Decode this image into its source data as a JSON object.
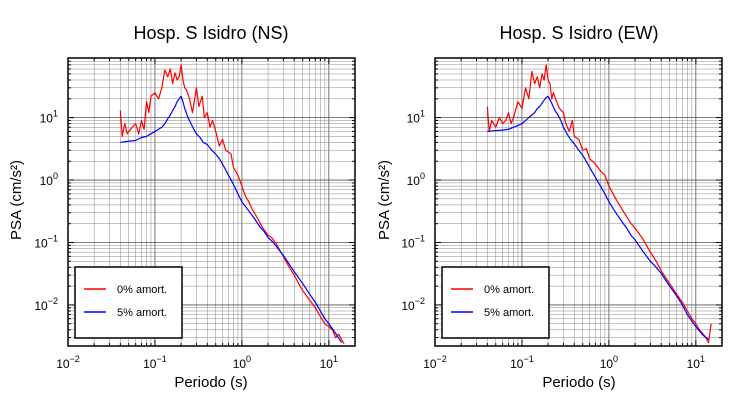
{
  "chart_data": [
    {
      "type": "line",
      "title": "Hosp. S Isidro (NS)",
      "xlabel": "Periodo (s)",
      "ylabel": "PSA (cm/s²)",
      "x_scale": "log",
      "y_scale": "log",
      "xlim": [
        0.01,
        20
      ],
      "ylim": [
        0.0022,
        90
      ],
      "x_ticks": [
        {
          "value": 0.01,
          "base": "10",
          "exp": "−2"
        },
        {
          "value": 0.1,
          "base": "10",
          "exp": "−1"
        },
        {
          "value": 1,
          "base": "10",
          "exp": "0"
        },
        {
          "value": 10,
          "base": "10",
          "exp": "1"
        }
      ],
      "y_ticks": [
        {
          "value": 0.01,
          "base": "10",
          "exp": "−2"
        },
        {
          "value": 0.1,
          "base": "10",
          "exp": "−1"
        },
        {
          "value": 1,
          "base": "10",
          "exp": "0"
        },
        {
          "value": 10,
          "base": "10",
          "exp": "1"
        }
      ],
      "grid": true,
      "legend_position": "bottom-left",
      "series": [
        {
          "name": "0% amort.",
          "color": "#ff0000",
          "x": [
            0.04,
            0.042,
            0.045,
            0.048,
            0.05,
            0.055,
            0.06,
            0.065,
            0.07,
            0.075,
            0.08,
            0.085,
            0.09,
            0.1,
            0.11,
            0.12,
            0.13,
            0.14,
            0.15,
            0.16,
            0.17,
            0.18,
            0.19,
            0.2,
            0.21,
            0.22,
            0.23,
            0.25,
            0.27,
            0.3,
            0.32,
            0.35,
            0.37,
            0.4,
            0.43,
            0.46,
            0.5,
            0.55,
            0.6,
            0.65,
            0.7,
            0.75,
            0.8,
            0.9,
            1.0,
            1.1,
            1.2,
            1.3,
            1.5,
            1.7,
            2.0,
            2.2,
            2.5,
            2.8,
            3.0,
            3.5,
            4.0,
            4.5,
            5.0,
            6.0,
            7.0,
            8.0,
            9.0,
            10,
            11,
            12,
            13,
            14,
            15
          ],
          "y": [
            13,
            5,
            8,
            5.5,
            6,
            7,
            8,
            5.5,
            9,
            6.5,
            18,
            12,
            22,
            25,
            20,
            30,
            58,
            45,
            60,
            35,
            52,
            40,
            45,
            70,
            40,
            30,
            28,
            20,
            12,
            30,
            15,
            22,
            10,
            12,
            7,
            9,
            6,
            3.5,
            4.5,
            3,
            2.8,
            2.6,
            1.6,
            1.2,
            0.8,
            0.55,
            0.45,
            0.35,
            0.25,
            0.18,
            0.13,
            0.12,
            0.095,
            0.07,
            0.06,
            0.04,
            0.03,
            0.022,
            0.017,
            0.012,
            0.009,
            0.0065,
            0.005,
            0.0045,
            0.004,
            0.003,
            0.0034,
            0.0028,
            0.0024
          ]
        },
        {
          "name": "5% amort.",
          "color": "#0000ff",
          "x": [
            0.04,
            0.05,
            0.06,
            0.07,
            0.08,
            0.09,
            0.1,
            0.11,
            0.12,
            0.13,
            0.14,
            0.15,
            0.16,
            0.17,
            0.18,
            0.19,
            0.2,
            0.21,
            0.22,
            0.24,
            0.26,
            0.28,
            0.3,
            0.33,
            0.36,
            0.4,
            0.45,
            0.5,
            0.55,
            0.6,
            0.7,
            0.8,
            0.9,
            1.0,
            1.2,
            1.4,
            1.6,
            1.8,
            2.0,
            2.3,
            2.6,
            3.0,
            3.5,
            4.0,
            5.0,
            6.0,
            7.0,
            8.0,
            9.0,
            10,
            12,
            14
          ],
          "y": [
            4,
            4.2,
            4.3,
            4.8,
            5,
            5.5,
            6,
            6.5,
            7,
            8,
            9.5,
            11,
            13,
            15,
            18,
            20,
            22,
            18,
            14,
            10,
            8,
            6.5,
            5.5,
            4.8,
            4,
            3.7,
            3,
            2.6,
            2.2,
            1.8,
            1.2,
            0.85,
            0.6,
            0.45,
            0.32,
            0.24,
            0.18,
            0.15,
            0.12,
            0.1,
            0.08,
            0.062,
            0.045,
            0.034,
            0.022,
            0.015,
            0.011,
            0.008,
            0.006,
            0.005,
            0.0035,
            0.0025
          ]
        }
      ]
    },
    {
      "type": "line",
      "title": "Hosp. S Isidro (EW)",
      "xlabel": "Periodo (s)",
      "ylabel": "PSA (cm/s²)",
      "x_scale": "log",
      "y_scale": "log",
      "xlim": [
        0.01,
        20
      ],
      "ylim": [
        0.0022,
        90
      ],
      "x_ticks": [
        {
          "value": 0.01,
          "base": "10",
          "exp": "−2"
        },
        {
          "value": 0.1,
          "base": "10",
          "exp": "−1"
        },
        {
          "value": 1,
          "base": "10",
          "exp": "0"
        },
        {
          "value": 10,
          "base": "10",
          "exp": "1"
        }
      ],
      "y_ticks": [
        {
          "value": 0.01,
          "base": "10",
          "exp": "−2"
        },
        {
          "value": 0.1,
          "base": "10",
          "exp": "−1"
        },
        {
          "value": 1,
          "base": "10",
          "exp": "0"
        },
        {
          "value": 10,
          "base": "10",
          "exp": "1"
        }
      ],
      "grid": true,
      "legend_position": "bottom-left",
      "series": [
        {
          "name": "0% amort.",
          "color": "#ff0000",
          "x": [
            0.04,
            0.042,
            0.045,
            0.05,
            0.055,
            0.06,
            0.065,
            0.07,
            0.075,
            0.08,
            0.09,
            0.1,
            0.11,
            0.12,
            0.13,
            0.14,
            0.15,
            0.16,
            0.17,
            0.18,
            0.19,
            0.2,
            0.21,
            0.22,
            0.23,
            0.25,
            0.27,
            0.3,
            0.32,
            0.35,
            0.38,
            0.4,
            0.45,
            0.5,
            0.55,
            0.6,
            0.7,
            0.8,
            0.9,
            1.0,
            1.2,
            1.5,
            1.8,
            2.0,
            2.5,
            3.0,
            3.5,
            4.0,
            5.0,
            6.0,
            7.0,
            8.0,
            9.0,
            10,
            11,
            12,
            13,
            14,
            15
          ],
          "y": [
            15,
            6,
            9,
            7,
            10,
            8,
            9,
            12,
            8,
            10,
            18,
            14,
            30,
            20,
            55,
            35,
            45,
            30,
            50,
            40,
            70,
            40,
            35,
            20,
            25,
            18,
            14,
            12,
            8,
            6,
            9,
            5,
            4.5,
            3,
            3.2,
            2.2,
            1.8,
            1.4,
            1.2,
            0.8,
            0.5,
            0.3,
            0.2,
            0.17,
            0.11,
            0.07,
            0.05,
            0.035,
            0.022,
            0.015,
            0.011,
            0.008,
            0.006,
            0.005,
            0.004,
            0.0035,
            0.003,
            0.0025,
            0.005
          ]
        },
        {
          "name": "5% amort.",
          "color": "#0000ff",
          "x": [
            0.04,
            0.05,
            0.06,
            0.07,
            0.08,
            0.09,
            0.1,
            0.11,
            0.12,
            0.13,
            0.14,
            0.15,
            0.16,
            0.17,
            0.18,
            0.19,
            0.2,
            0.22,
            0.24,
            0.26,
            0.28,
            0.3,
            0.33,
            0.36,
            0.4,
            0.45,
            0.5,
            0.6,
            0.7,
            0.8,
            0.9,
            1.0,
            1.2,
            1.4,
            1.6,
            1.8,
            2.0,
            2.5,
            3.0,
            3.5,
            4.0,
            5.0,
            6.0,
            7.0,
            8.0,
            9.0,
            10,
            12,
            14
          ],
          "y": [
            6,
            6.2,
            6.3,
            6.5,
            7,
            7.5,
            8,
            9,
            10,
            11,
            12,
            14,
            15,
            17,
            19,
            21,
            22,
            17,
            13,
            11,
            9,
            7,
            5.5,
            4.5,
            3.8,
            3,
            2.5,
            1.6,
            1.1,
            0.8,
            0.6,
            0.45,
            0.3,
            0.22,
            0.17,
            0.13,
            0.11,
            0.07,
            0.05,
            0.04,
            0.032,
            0.02,
            0.014,
            0.01,
            0.007,
            0.0055,
            0.0045,
            0.0033,
            0.0028
          ]
        }
      ]
    }
  ]
}
